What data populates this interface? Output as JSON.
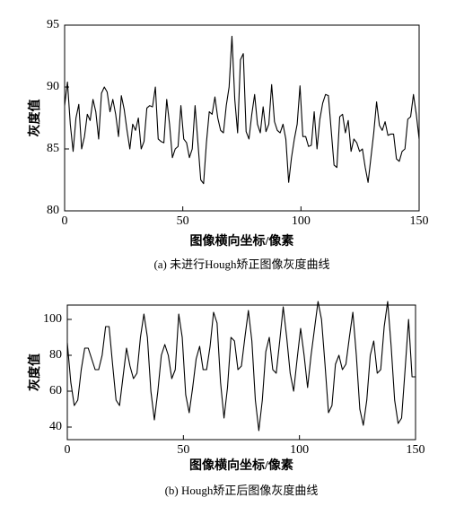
{
  "chart_data": [
    {
      "type": "line",
      "color": "#000000",
      "x": [
        0,
        1.2,
        2.4,
        3.6,
        4.8,
        6,
        7.2,
        8.4,
        9.6,
        10.8,
        12,
        13.2,
        14.4,
        15.6,
        16.8,
        18,
        19.2,
        20.4,
        21.6,
        22.8,
        24,
        25.2,
        26.4,
        27.6,
        28.8,
        30,
        31.2,
        32.4,
        33.6,
        34.8,
        36,
        37.2,
        38.4,
        39.6,
        40.8,
        42,
        43.2,
        44.4,
        45.6,
        46.8,
        48,
        49.2,
        50.4,
        51.6,
        52.8,
        54,
        55.2,
        56.4,
        57.6,
        58.8,
        60,
        61.2,
        62.4,
        63.6,
        64.8,
        66,
        67.2,
        68.4,
        69.6,
        70.8,
        72,
        73.2,
        74.4,
        75.6,
        76.8,
        78,
        79.2,
        80.4,
        81.6,
        82.8,
        84,
        85.2,
        86.4,
        87.6,
        88.8,
        90,
        91.2,
        92.4,
        93.6,
        94.8,
        96,
        97.2,
        98.4,
        99.6,
        100.8,
        102,
        103.2,
        104.4,
        105.6,
        106.8,
        108,
        109.2,
        110.4,
        111.6,
        112.8,
        114,
        115.2,
        116.4,
        117.6,
        118.8,
        120,
        121.2,
        122.4,
        123.6,
        124.8,
        126,
        127.2,
        128.4,
        129.6,
        130.8,
        132,
        133.2,
        134.4,
        135.6,
        136.8,
        138,
        139.2,
        140.4,
        141.6,
        142.8,
        144,
        145.2,
        146.4,
        147.6,
        148.8,
        150
      ],
      "values": [
        88.5,
        90.4,
        87,
        84.8,
        87.5,
        88.6,
        85,
        86,
        87.8,
        87.3,
        89,
        88,
        85.8,
        89.5,
        90,
        89.6,
        88,
        89,
        87.8,
        86,
        89.3,
        88.2,
        86.5,
        85,
        87,
        86.5,
        87.5,
        85,
        85.6,
        88.3,
        88.5,
        88.4,
        90,
        85.8,
        85.6,
        85.5,
        89,
        87,
        84.3,
        85,
        85.2,
        88.5,
        85.8,
        85.5,
        84.3,
        85,
        88.5,
        85.5,
        82.5,
        82.2,
        85.5,
        88,
        87.8,
        89.2,
        87.5,
        86.5,
        86.3,
        88.5,
        90,
        94.1,
        89,
        86.3,
        92.2,
        92.7,
        86.4,
        85.8,
        87.8,
        89.4,
        87,
        86.3,
        88.4,
        86.4,
        87,
        90.2,
        87.2,
        86.5,
        86.3,
        87,
        85.8,
        82.3,
        84.3,
        85.8,
        87,
        90.1,
        86,
        86,
        85.2,
        85.3,
        88,
        85,
        87.4,
        88.7,
        89.4,
        89.3,
        86.5,
        83.7,
        83.5,
        87.6,
        87.8,
        86.3,
        87.3,
        84.8,
        85.8,
        85.5,
        84.8,
        85,
        83.5,
        82.3,
        84.3,
        86.3,
        88.8,
        86.9,
        86.5,
        87.2,
        86.1,
        86.2,
        86.2,
        84.2,
        84,
        84.8,
        85,
        87.4,
        87.6,
        89.4,
        87.8,
        85.8
      ],
      "xlim": [
        0,
        150
      ],
      "xticks": [
        0,
        50,
        100,
        150
      ],
      "ylim": [
        80,
        95
      ],
      "yticks": [
        80,
        85,
        90,
        95
      ],
      "x_label": "图像横向坐标/像素",
      "y_label": "灰度值",
      "caption": "(a) 未进行Hough矫正图像灰度曲线"
    },
    {
      "type": "line",
      "color": "#000000",
      "x": [
        0,
        1.5,
        3,
        4.5,
        6,
        7.5,
        9,
        10.5,
        12,
        13.5,
        15,
        16.5,
        18,
        19.5,
        21,
        22.5,
        24,
        25.5,
        27,
        28.5,
        30,
        31.5,
        33,
        34.5,
        36,
        37.5,
        39,
        40.5,
        42,
        43.5,
        45,
        46.5,
        48,
        49.5,
        51,
        52.5,
        54,
        55.5,
        57,
        58.5,
        60,
        61.5,
        63,
        64.5,
        66,
        67.5,
        69,
        70.5,
        72,
        73.5,
        75,
        76.5,
        78,
        79.5,
        81,
        82.5,
        84,
        85.5,
        87,
        88.5,
        90,
        91.5,
        93,
        94.5,
        96,
        97.5,
        99,
        100.5,
        102,
        103.5,
        105,
        106.5,
        108,
        109.5,
        111,
        112.5,
        114,
        115.5,
        117,
        118.5,
        120,
        121.5,
        123,
        124.5,
        126,
        127.5,
        129,
        130.5,
        132,
        133.5,
        135,
        136.5,
        138,
        139.5,
        141,
        142.5,
        144,
        145.5,
        147,
        148.5,
        150
      ],
      "values": [
        87,
        65,
        52,
        55,
        72,
        84,
        84,
        78,
        72,
        72,
        80,
        96,
        96,
        75,
        55,
        52,
        68,
        84,
        74,
        67,
        70,
        90,
        103,
        90,
        60,
        44,
        60,
        80,
        86,
        80,
        67,
        72,
        103,
        90,
        58,
        48,
        62,
        78,
        85,
        72,
        72,
        85,
        104,
        98,
        65,
        45,
        62,
        90,
        88,
        72,
        74,
        90,
        105,
        88,
        55,
        38,
        55,
        82,
        90,
        72,
        70,
        88,
        107,
        90,
        70,
        60,
        78,
        95,
        80,
        62,
        80,
        95,
        110,
        100,
        75,
        48,
        52,
        75,
        80,
        72,
        75,
        90,
        104,
        80,
        50,
        41,
        55,
        80,
        88,
        70,
        72,
        96,
        110,
        85,
        55,
        42,
        45,
        72,
        100,
        68,
        68
      ],
      "xlim": [
        0,
        150
      ],
      "xticks": [
        0,
        50,
        100,
        150
      ],
      "ylim": [
        33,
        108
      ],
      "yticks": [
        40,
        60,
        80,
        100
      ],
      "x_label": "图像横向坐标/像素",
      "y_label": "灰度值",
      "caption": "(b) Hough矫正后图像灰度曲线"
    }
  ]
}
